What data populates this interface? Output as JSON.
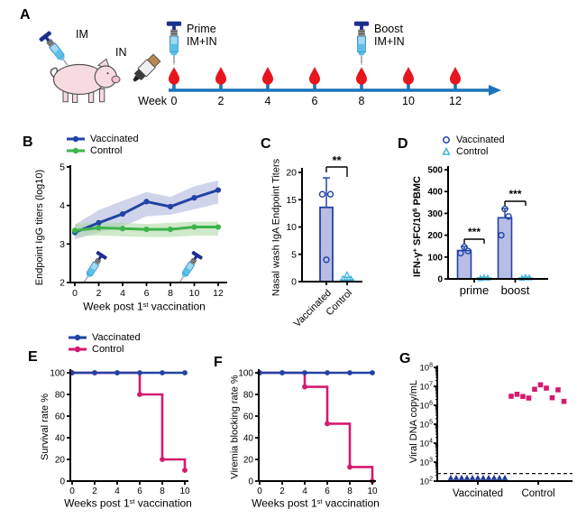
{
  "panelA": {
    "letter": "A",
    "im_label": "IM",
    "in_label": "IN",
    "prime_line1": "Prime",
    "prime_line2": "IM+IN",
    "boost_line1": "Boost",
    "boost_line2": "IM+IN",
    "week_prefix": "Week",
    "weeks": [
      0,
      2,
      4,
      6,
      8,
      10,
      12
    ],
    "prime_week": 0,
    "boost_week": 8,
    "timeline_color": "#1b74bc",
    "drop_color": "#e8141e",
    "pig_color": "#f7dbe1"
  },
  "chart_data": [
    {
      "panel": "B",
      "type": "line",
      "x": [
        0,
        2,
        4,
        6,
        8,
        10,
        12
      ],
      "series": [
        {
          "name": "Vaccinated",
          "color": "#2243a5",
          "band_color": "#aab0d8",
          "values": [
            3.3,
            3.55,
            3.78,
            4.1,
            3.97,
            4.2,
            4.4
          ],
          "band_low": [
            3.12,
            3.3,
            3.45,
            3.72,
            3.76,
            3.9,
            4.05
          ],
          "band_high": [
            3.5,
            3.88,
            4.12,
            4.35,
            4.22,
            4.5,
            4.65
          ]
        },
        {
          "name": "Control",
          "color": "#3db44b",
          "band_color": "#a9d79f",
          "values": [
            3.35,
            3.42,
            3.4,
            3.38,
            3.38,
            3.44,
            3.44
          ],
          "band_low": [
            3.2,
            3.22,
            3.2,
            3.18,
            3.18,
            3.22,
            3.22
          ],
          "band_high": [
            3.52,
            3.56,
            3.55,
            3.52,
            3.55,
            3.58,
            3.58
          ]
        }
      ],
      "xlabel": {
        "pre": "Week post 1",
        "sup": "st",
        "post": " vaccination"
      },
      "ylabel": "Endpoint IgG titers (log10)",
      "ylim": [
        2,
        5
      ],
      "yticks": [
        2,
        3,
        4,
        5
      ],
      "xticks": [
        0,
        2,
        4,
        6,
        8,
        10,
        12
      ],
      "syringe_weeks": [
        0.8,
        8.8
      ]
    },
    {
      "panel": "C",
      "type": "bar",
      "categories": [
        "Vaccinated",
        "Control"
      ],
      "values": [
        13.6,
        0.3
      ],
      "errors": [
        5.4,
        0.5
      ],
      "points": [
        [
          16,
          16,
          4
        ],
        [
          0.5,
          0.4,
          1.2
        ]
      ],
      "bar_fill": [
        "#b8bde6",
        "#7fd0e8"
      ],
      "bar_edge": [
        "#2243a5",
        "#3fb3d9"
      ],
      "ylabel": "Nasal wash IgA Endpoint Titers",
      "ylim": [
        0,
        20
      ],
      "yticks": [
        0,
        5,
        10,
        15,
        20
      ],
      "significance": "**"
    },
    {
      "panel": "D",
      "type": "grouped_bar",
      "categories": [
        "prime",
        "boost"
      ],
      "series": [
        {
          "name": "Vaccinated",
          "marker": "circle",
          "fill": "#b8bde6",
          "edge": "#2243a5",
          "values": [
            130,
            280
          ],
          "errors": [
            18,
            42
          ],
          "points": [
            [
              118,
              128,
              146
            ],
            [
              200,
              286,
              320
            ]
          ]
        },
        {
          "name": "Control",
          "marker": "triangle",
          "fill": "#7fd0e8",
          "edge": "#3fb3d9",
          "values": [
            4,
            4
          ],
          "errors": [
            3,
            3
          ],
          "points": [
            [
              2,
              4,
              6
            ],
            [
              3,
              5,
              7
            ]
          ]
        }
      ],
      "ylabel": {
        "pre": "IFN-γ",
        "sup1": "+",
        "mid": " SFC/10",
        "sup2": "6",
        "post": " PBMC"
      },
      "ylim": [
        0,
        500
      ],
      "yticks": [
        0,
        100,
        200,
        300,
        400,
        500
      ],
      "significance": [
        "***",
        "***"
      ]
    },
    {
      "panel": "E",
      "type": "step",
      "x": [
        0,
        2,
        4,
        6,
        8,
        10
      ],
      "series": [
        {
          "name": "Vaccinated",
          "color": "#2243a5",
          "values": [
            100,
            100,
            100,
            100,
            100,
            100
          ]
        },
        {
          "name": "Control",
          "color": "#d41a6e",
          "values": [
            100,
            100,
            100,
            80,
            20,
            10
          ]
        }
      ],
      "ylabel": "Survival rate %",
      "xlabel": {
        "pre": "Weeks post 1",
        "sup": "st",
        "post": " vaccination"
      },
      "ylim": [
        0,
        100
      ],
      "yticks": [
        0,
        20,
        40,
        60,
        80,
        100
      ],
      "xticks": [
        0,
        2,
        4,
        6,
        8,
        10
      ]
    },
    {
      "panel": "F",
      "type": "step",
      "x": [
        0,
        2,
        4,
        6,
        8,
        10
      ],
      "series": [
        {
          "name": "Vaccinated",
          "color": "#2243a5",
          "values": [
            100,
            100,
            100,
            100,
            100,
            100
          ]
        },
        {
          "name": "Control",
          "color": "#d41a6e",
          "values": [
            100,
            100,
            87,
            53,
            13,
            0
          ]
        }
      ],
      "ylabel": "Viremia blocking rate %",
      "xlabel": {
        "pre": "Weeks post 1",
        "sup": "st",
        "post": " vaccination"
      },
      "ylim": [
        0,
        100
      ],
      "yticks": [
        0,
        20,
        40,
        60,
        80,
        100
      ],
      "xticks": [
        0,
        2,
        4,
        6,
        8,
        10
      ]
    },
    {
      "panel": "G",
      "type": "scatter_log",
      "categories": [
        "Vaccinated",
        "Control"
      ],
      "groups": [
        {
          "name": "Vaccinated",
          "marker": "triangle",
          "color": "#1f3a93",
          "values": [
            150,
            150,
            150,
            150,
            150,
            150,
            150,
            150,
            150,
            150,
            150
          ]
        },
        {
          "name": "Control",
          "marker": "square",
          "color": "#d41a6e",
          "values": [
            3000000,
            3800000,
            2900000,
            2400000,
            7000000,
            12000000,
            8000000,
            2500000,
            6500000,
            1600000
          ]
        }
      ],
      "ylabel": "Viral DNA copy/mL",
      "y_exponents": [
        2,
        3,
        4,
        5,
        6,
        7,
        8
      ],
      "detection_limit": 250
    }
  ]
}
